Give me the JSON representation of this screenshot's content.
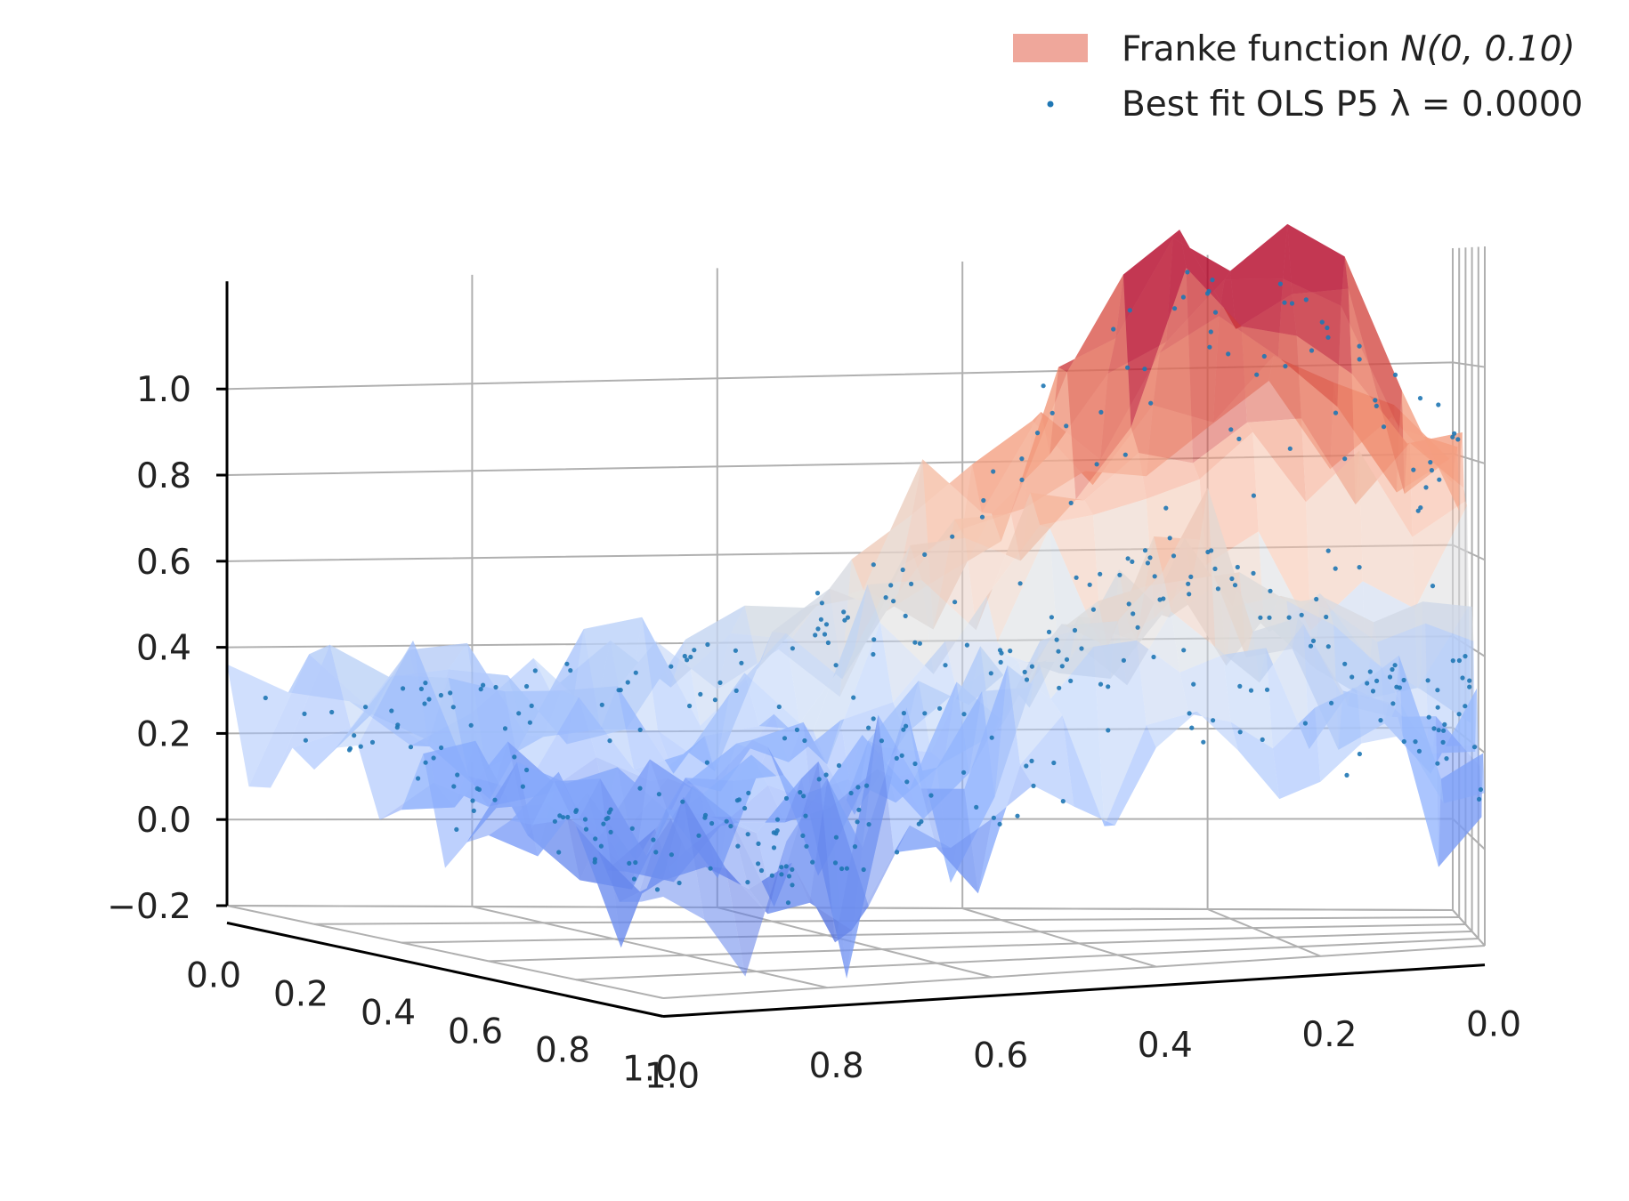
{
  "chart_data": {
    "type": "surface3d",
    "title": "",
    "legend": {
      "placement": "top-right",
      "entries": [
        {
          "kind": "patch",
          "label": "Franke function N(0, 0.10)",
          "label_prefix": "Franke function ",
          "label_math": "N(0, 0.10)",
          "color": "#e9897a"
        },
        {
          "kind": "points",
          "label": "Best fit OLS P5 λ = 0.0000",
          "label_prefix": "Best fit OLS P5 ",
          "label_math": "λ = 0.0000",
          "color": "#1f77b4"
        }
      ]
    },
    "z_axis": {
      "ticks": [
        "−0.2",
        "0.0",
        "0.2",
        "0.4",
        "0.6",
        "0.8",
        "1.0"
      ],
      "range": [
        -0.2,
        1.2
      ]
    },
    "x_axis": {
      "ticks": [
        "0.0",
        "0.2",
        "0.4",
        "0.6",
        "0.8",
        "1.0"
      ],
      "range": [
        0,
        1
      ]
    },
    "y_axis": {
      "ticks": [
        "1.0",
        "0.8",
        "0.6",
        "0.4",
        "0.2",
        "0.0"
      ],
      "range": [
        0,
        1
      ]
    },
    "surface": {
      "name": "Franke function N(0, 0.10)",
      "colormap": "coolwarm",
      "grid_size": 20,
      "noise_sd": 0.1
    },
    "fit_points": {
      "name": "Best fit OLS P5 λ = 0.0000",
      "color": "#1f77b4"
    },
    "grid": true
  }
}
